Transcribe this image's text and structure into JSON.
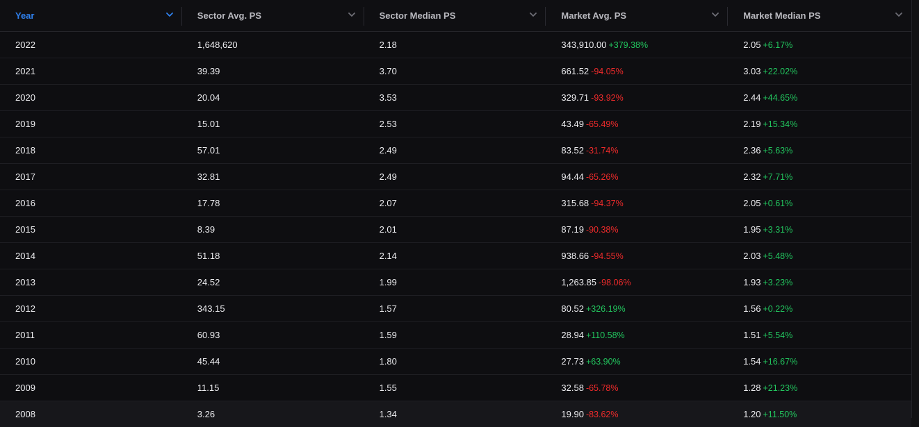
{
  "colors": {
    "positive": "#22c55e",
    "negative": "#ef2b2b",
    "accent": "#2f80ed"
  },
  "columns": [
    {
      "label": "Year",
      "active": true
    },
    {
      "label": "Sector Avg. PS",
      "active": false
    },
    {
      "label": "Sector Median PS",
      "active": false
    },
    {
      "label": "Market Avg. PS",
      "active": false
    },
    {
      "label": "Market Median PS",
      "active": false
    }
  ],
  "rows": [
    {
      "year": "2022",
      "sector_avg": "1,648,620",
      "sector_median": "2.18",
      "market_avg": "343,910.00",
      "market_avg_change": "+379.38%",
      "market_median": "2.05",
      "market_median_change": "+6.17%"
    },
    {
      "year": "2021",
      "sector_avg": "39.39",
      "sector_median": "3.70",
      "market_avg": "661.52",
      "market_avg_change": "-94.05%",
      "market_median": "3.03",
      "market_median_change": "+22.02%"
    },
    {
      "year": "2020",
      "sector_avg": "20.04",
      "sector_median": "3.53",
      "market_avg": "329.71",
      "market_avg_change": "-93.92%",
      "market_median": "2.44",
      "market_median_change": "+44.65%"
    },
    {
      "year": "2019",
      "sector_avg": "15.01",
      "sector_median": "2.53",
      "market_avg": "43.49",
      "market_avg_change": "-65.49%",
      "market_median": "2.19",
      "market_median_change": "+15.34%"
    },
    {
      "year": "2018",
      "sector_avg": "57.01",
      "sector_median": "2.49",
      "market_avg": "83.52",
      "market_avg_change": "-31.74%",
      "market_median": "2.36",
      "market_median_change": "+5.63%"
    },
    {
      "year": "2017",
      "sector_avg": "32.81",
      "sector_median": "2.49",
      "market_avg": "94.44",
      "market_avg_change": "-65.26%",
      "market_median": "2.32",
      "market_median_change": "+7.71%"
    },
    {
      "year": "2016",
      "sector_avg": "17.78",
      "sector_median": "2.07",
      "market_avg": "315.68",
      "market_avg_change": "-94.37%",
      "market_median": "2.05",
      "market_median_change": "+0.61%"
    },
    {
      "year": "2015",
      "sector_avg": "8.39",
      "sector_median": "2.01",
      "market_avg": "87.19",
      "market_avg_change": "-90.38%",
      "market_median": "1.95",
      "market_median_change": "+3.31%"
    },
    {
      "year": "2014",
      "sector_avg": "51.18",
      "sector_median": "2.14",
      "market_avg": "938.66",
      "market_avg_change": "-94.55%",
      "market_median": "2.03",
      "market_median_change": "+5.48%"
    },
    {
      "year": "2013",
      "sector_avg": "24.52",
      "sector_median": "1.99",
      "market_avg": "1,263.85",
      "market_avg_change": "-98.06%",
      "market_median": "1.93",
      "market_median_change": "+3.23%"
    },
    {
      "year": "2012",
      "sector_avg": "343.15",
      "sector_median": "1.57",
      "market_avg": "80.52",
      "market_avg_change": "+326.19%",
      "market_median": "1.56",
      "market_median_change": "+0.22%"
    },
    {
      "year": "2011",
      "sector_avg": "60.93",
      "sector_median": "1.59",
      "market_avg": "28.94",
      "market_avg_change": "+110.58%",
      "market_median": "1.51",
      "market_median_change": "+5.54%"
    },
    {
      "year": "2010",
      "sector_avg": "45.44",
      "sector_median": "1.80",
      "market_avg": "27.73",
      "market_avg_change": "+63.90%",
      "market_median": "1.54",
      "market_median_change": "+16.67%"
    },
    {
      "year": "2009",
      "sector_avg": "11.15",
      "sector_median": "1.55",
      "market_avg": "32.58",
      "market_avg_change": "-65.78%",
      "market_median": "1.28",
      "market_median_change": "+21.23%"
    },
    {
      "year": "2008",
      "sector_avg": "3.26",
      "sector_median": "1.34",
      "market_avg": "19.90",
      "market_avg_change": "-83.62%",
      "market_median": "1.20",
      "market_median_change": "+11.50%"
    }
  ]
}
